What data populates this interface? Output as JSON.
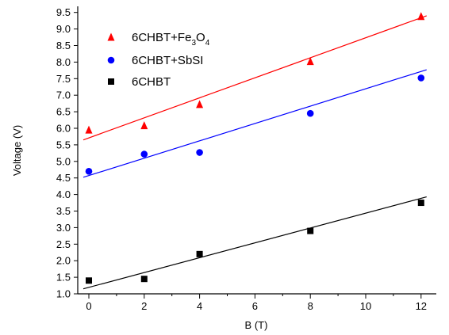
{
  "chart_data": {
    "type": "scatter",
    "xlabel": "B (T)",
    "ylabel": "Voltage (V)",
    "xlim": [
      -0.8,
      12.8
    ],
    "ylim": [
      1.0,
      9.6
    ],
    "x_ticks": [
      0,
      2,
      4,
      6,
      8,
      10,
      12
    ],
    "y_ticks": [
      1.0,
      1.5,
      2.0,
      2.5,
      3.0,
      3.5,
      4.0,
      4.5,
      5.0,
      5.5,
      6.0,
      6.5,
      7.0,
      7.5,
      8.0,
      8.5,
      9.0,
      9.5
    ],
    "grid": false,
    "legend_position": "top-left",
    "series": [
      {
        "name": "6CHBT+Fe3O4",
        "label_parts": [
          "6CHBT+Fe",
          "3",
          "O",
          "4"
        ],
        "marker": "triangle",
        "color": "#ff0000",
        "x": [
          0,
          2,
          4,
          8,
          12
        ],
        "y": [
          5.95,
          6.08,
          6.72,
          8.02,
          9.38
        ],
        "fit": {
          "x": [
            -0.2,
            12.2
          ],
          "y": [
            5.65,
            9.4
          ]
        }
      },
      {
        "name": "6CHBT+SbSI",
        "marker": "circle",
        "color": "#0000ff",
        "x": [
          0,
          2,
          4,
          8,
          12
        ],
        "y": [
          4.7,
          5.22,
          5.27,
          6.45,
          7.52
        ],
        "fit": {
          "x": [
            -0.2,
            12.2
          ],
          "y": [
            4.52,
            7.77
          ]
        }
      },
      {
        "name": "6CHBT",
        "marker": "square",
        "color": "#000000",
        "x": [
          0,
          2,
          4,
          8,
          12
        ],
        "y": [
          1.4,
          1.45,
          2.2,
          2.9,
          3.75
        ],
        "fit": {
          "x": [
            -0.2,
            12.2
          ],
          "y": [
            1.15,
            3.93
          ]
        }
      }
    ]
  }
}
